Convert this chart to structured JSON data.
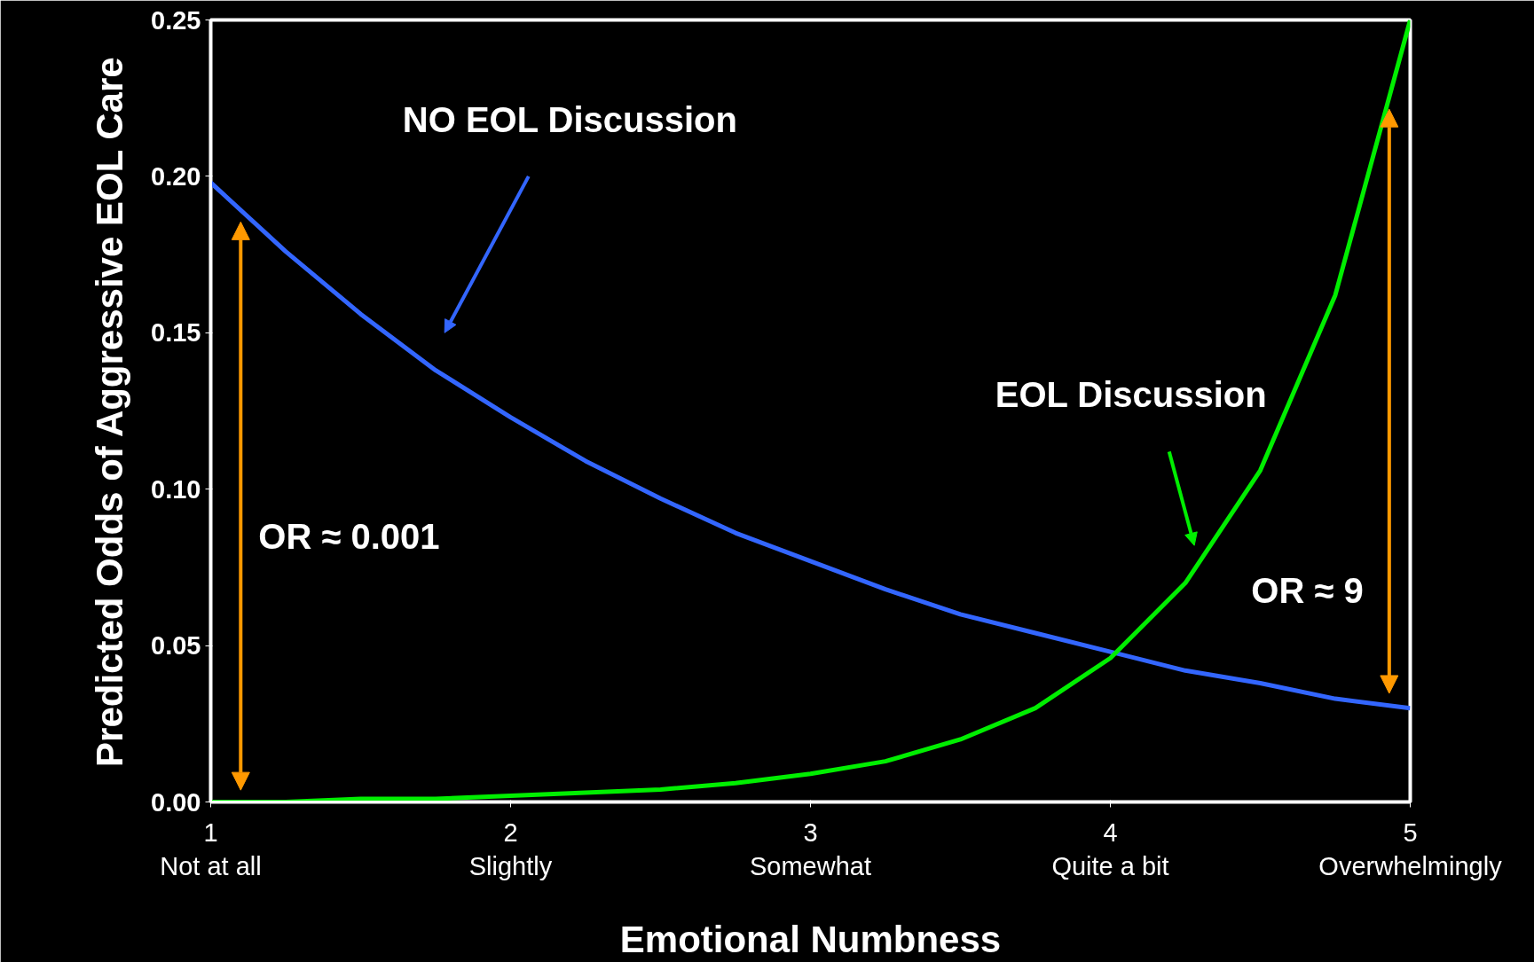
{
  "chart_data": {
    "type": "line",
    "xlabel": "Emotional Numbness",
    "ylabel": "Predicted Odds of Aggressive EOL Care",
    "x": [
      1,
      1.25,
      1.5,
      1.75,
      2,
      2.25,
      2.5,
      2.75,
      3,
      3.25,
      3.5,
      3.75,
      4,
      4.25,
      4.5,
      4.75,
      5
    ],
    "xlim": [
      1,
      5
    ],
    "ylim": [
      0,
      0.25
    ],
    "xticks": [
      {
        "value": 1,
        "label": "1\nNot at all"
      },
      {
        "value": 2,
        "label": "2\nSlightly"
      },
      {
        "value": 3,
        "label": "3\nSomewhat"
      },
      {
        "value": 4,
        "label": "4\nQuite a bit"
      },
      {
        "value": 5,
        "label": "5\nOverwhelmingly"
      }
    ],
    "yticks": [
      {
        "value": 0,
        "label": "0.00"
      },
      {
        "value": 0.05,
        "label": "0.05"
      },
      {
        "value": 0.1,
        "label": "0.10"
      },
      {
        "value": 0.15,
        "label": "0.15"
      },
      {
        "value": 0.2,
        "label": "0.20"
      },
      {
        "value": 0.25,
        "label": "0.25"
      }
    ],
    "series": [
      {
        "name": "NO EOL Discussion",
        "color": "#3366ff",
        "values": [
          0.198,
          0.176,
          0.156,
          0.138,
          0.123,
          0.109,
          0.097,
          0.086,
          0.077,
          0.068,
          0.06,
          0.054,
          0.048,
          0.042,
          0.038,
          0.033,
          0.03
        ]
      },
      {
        "name": "EOL Discussion",
        "color": "#00ee00",
        "values": [
          0.0,
          0.0,
          0.001,
          0.001,
          0.002,
          0.003,
          0.004,
          0.006,
          0.009,
          0.013,
          0.02,
          0.03,
          0.046,
          0.07,
          0.106,
          0.162,
          0.25
        ]
      }
    ],
    "annotations": [
      "OR ≈  0.001",
      "OR ≈  9"
    ],
    "grid": false,
    "marker": "none",
    "line_style": "solid"
  }
}
